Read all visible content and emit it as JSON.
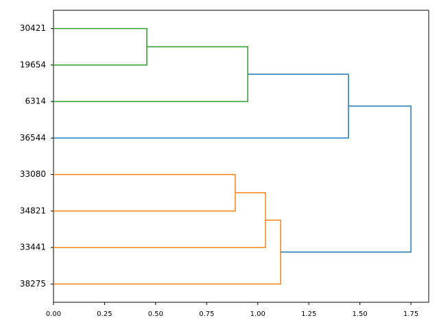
{
  "chart_data": {
    "type": "dendrogram",
    "tree": {
      "height": 1.75,
      "color": "#1f77b4",
      "children": [
        {
          "height": 1.444,
          "color": "#1f77b4",
          "children": [
            {
              "height": 0.951,
              "color": "#2ca02c",
              "children": [
                {
                  "height": 0.457,
                  "color": "#2ca02c",
                  "children": [
                    "30421",
                    "19654"
                  ]
                },
                "6314"
              ]
            },
            "36544"
          ]
        },
        {
          "height": 1.112,
          "color": "#ff7f0e",
          "children": [
            {
              "height": 1.038,
              "color": "#ff7f0e",
              "children": [
                {
                  "height": 0.89,
                  "color": "#ff7f0e",
                  "children": [
                    "33080",
                    "34821"
                  ]
                },
                "33441"
              ]
            },
            "38275"
          ]
        }
      ]
    },
    "xlim": [
      0,
      1.837
    ],
    "xticks": [
      {
        "value": 0,
        "label": "0.00"
      },
      {
        "value": 0.25,
        "label": "0.25"
      },
      {
        "value": 0.5,
        "label": "0.50"
      },
      {
        "value": 0.75,
        "label": "0.75"
      },
      {
        "value": 1,
        "label": "1.00"
      },
      {
        "value": 1.25,
        "label": "1.25"
      },
      {
        "value": 1.5,
        "label": "1.50"
      },
      {
        "value": 1.75,
        "label": "1.75"
      }
    ]
  }
}
